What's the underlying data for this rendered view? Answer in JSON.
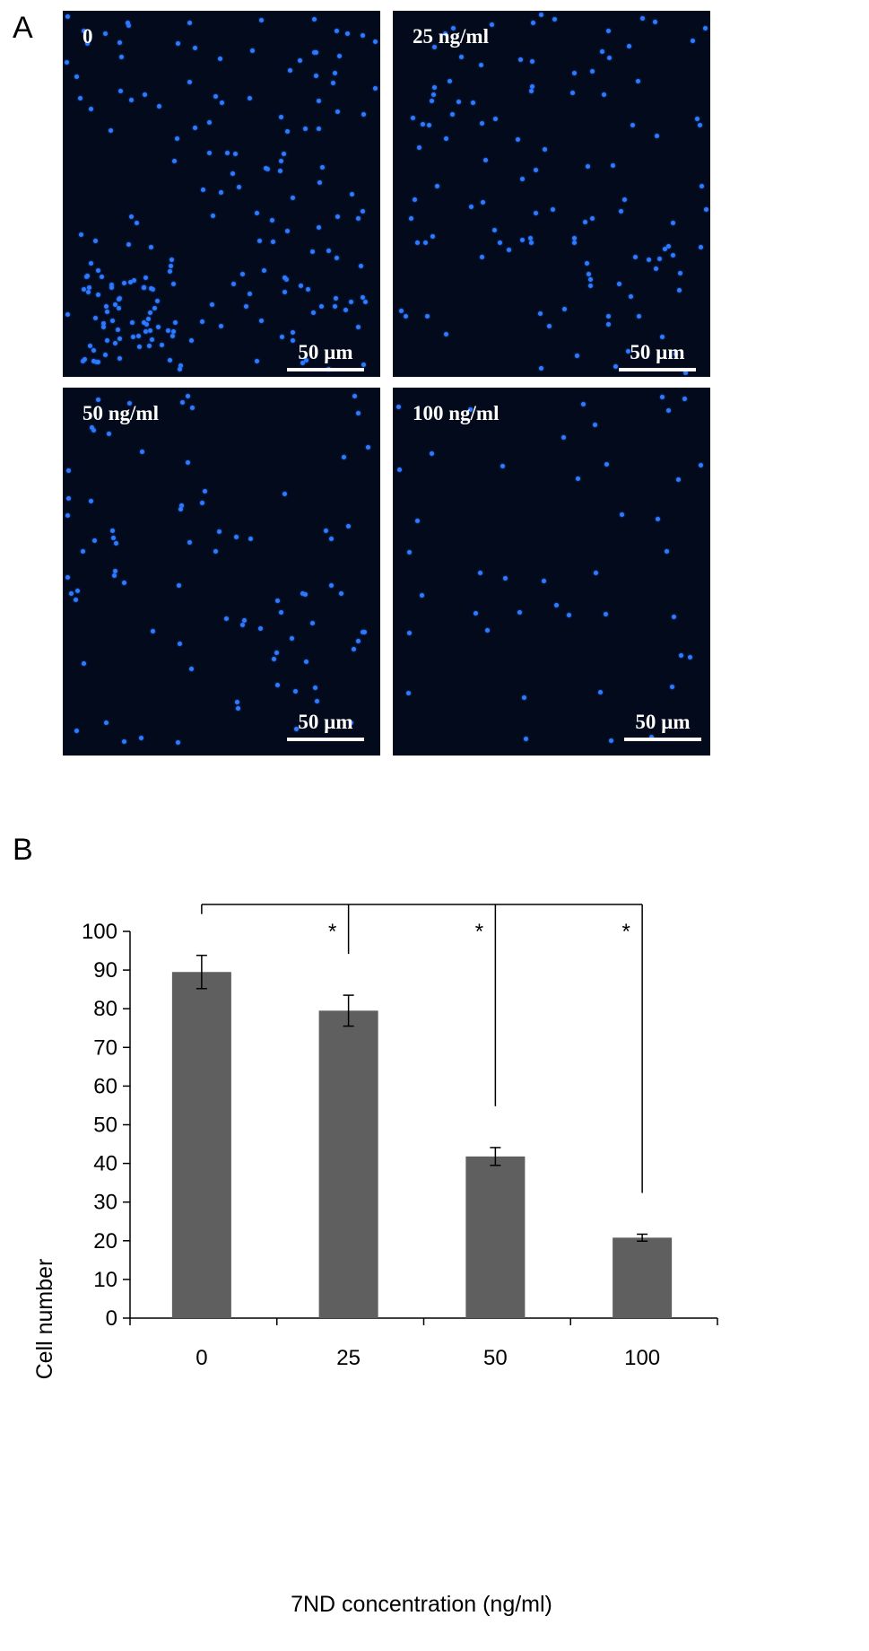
{
  "panels": {
    "a_label": "A",
    "b_label": "B"
  },
  "micrographs": [
    {
      "label": "0",
      "scale": "50 µm",
      "cell_density": "high"
    },
    {
      "label": "25 ng/ml",
      "scale": "50 µm",
      "cell_density": "medium"
    },
    {
      "label": "50 ng/ml",
      "scale": "50 µm",
      "cell_density": "low"
    },
    {
      "label": "100 ng/ml",
      "scale": "50 µm",
      "cell_density": "very-low"
    }
  ],
  "colors": {
    "micrograph_bg": "#030a1c",
    "nuclei": "#2f7bff",
    "bar": "#5f5f5f"
  },
  "chart_data": {
    "type": "bar",
    "categories": [
      "0",
      "25",
      "50",
      "100"
    ],
    "values": [
      89.5,
      79.5,
      41.8,
      20.8
    ],
    "errors": [
      4.3,
      4.0,
      2.3,
      0.9
    ],
    "xlabel": "7ND concentration (ng/ml)",
    "ylabel": "Cell number",
    "ylim": [
      0,
      100
    ],
    "yticks": [
      0,
      10,
      20,
      30,
      40,
      50,
      60,
      70,
      80,
      90,
      100
    ],
    "grid": false,
    "significance": [
      {
        "from": "0",
        "to": "25",
        "label": "*"
      },
      {
        "from": "0",
        "to": "50",
        "label": "*"
      },
      {
        "from": "0",
        "to": "100",
        "label": "*"
      }
    ]
  }
}
